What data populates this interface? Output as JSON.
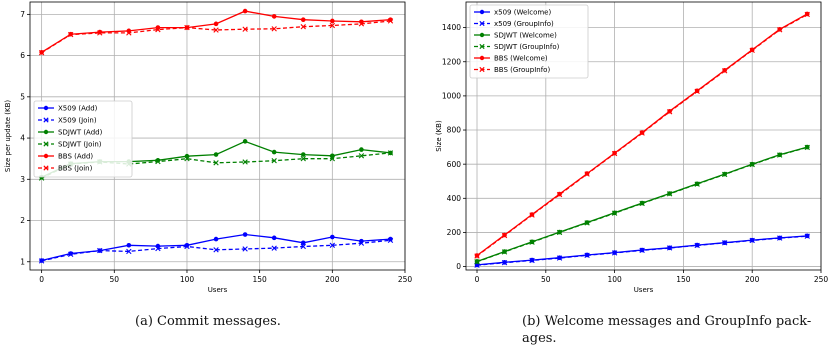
{
  "captions": {
    "left": "(a) Commit messages.",
    "right_line1": "(b) Welcome messages and GroupInfo pack-",
    "right_line2": "ages."
  },
  "chart_data": [
    {
      "type": "line",
      "title": "",
      "xlabel": "Users",
      "ylabel": "Size per update (KB)",
      "xlim": [
        -8,
        250
      ],
      "ylim": [
        0.8,
        7.3
      ],
      "xticks": [
        0,
        50,
        100,
        150,
        200,
        250
      ],
      "yticks": [
        1,
        2,
        3,
        4,
        5,
        6,
        7
      ],
      "grid": true,
      "legend": "center-left",
      "x": [
        0,
        20,
        40,
        60,
        80,
        100,
        120,
        140,
        160,
        180,
        200,
        220,
        240
      ],
      "series": [
        {
          "name": "X509 (Add)",
          "color": "#0000ff",
          "linestyle": "solid",
          "marker": "o",
          "values": [
            1.03,
            1.2,
            1.27,
            1.4,
            1.38,
            1.4,
            1.55,
            1.66,
            1.58,
            1.46,
            1.6,
            1.5,
            1.55
          ]
        },
        {
          "name": "X509 (Join)",
          "color": "#0000ff",
          "linestyle": "dashed",
          "marker": "x",
          "values": [
            1.02,
            1.18,
            1.27,
            1.25,
            1.32,
            1.37,
            1.29,
            1.31,
            1.33,
            1.37,
            1.4,
            1.45,
            1.52
          ]
        },
        {
          "name": "SDJWT (Add)",
          "color": "#008000",
          "linestyle": "solid",
          "marker": "o",
          "values": [
            3.05,
            3.38,
            3.43,
            3.43,
            3.46,
            3.56,
            3.6,
            3.92,
            3.66,
            3.6,
            3.57,
            3.72,
            3.64
          ]
        },
        {
          "name": "SDJWT (Join)",
          "color": "#008000",
          "linestyle": "dashed",
          "marker": "x",
          "values": [
            3.03,
            3.37,
            3.42,
            3.37,
            3.43,
            3.5,
            3.4,
            3.42,
            3.45,
            3.5,
            3.5,
            3.57,
            3.64
          ]
        },
        {
          "name": "BBS (Add)",
          "color": "#ff0000",
          "linestyle": "solid",
          "marker": "o",
          "values": [
            6.08,
            6.52,
            6.57,
            6.6,
            6.68,
            6.68,
            6.77,
            7.08,
            6.95,
            6.87,
            6.84,
            6.82,
            6.87
          ]
        },
        {
          "name": "BBS (Join)",
          "color": "#ff0000",
          "linestyle": "dashed",
          "marker": "x",
          "values": [
            6.07,
            6.51,
            6.55,
            6.55,
            6.63,
            6.68,
            6.62,
            6.64,
            6.65,
            6.7,
            6.73,
            6.77,
            6.84
          ]
        }
      ]
    },
    {
      "type": "line",
      "title": "",
      "xlabel": "Users",
      "ylabel": "Size (KB)",
      "xlim": [
        -8,
        250
      ],
      "ylim": [
        -20,
        1550
      ],
      "xticks": [
        0,
        50,
        100,
        150,
        200,
        250
      ],
      "yticks": [
        0,
        200,
        400,
        600,
        800,
        1000,
        1200,
        1400
      ],
      "grid": true,
      "legend": "top-left",
      "x": [
        0,
        20,
        40,
        60,
        80,
        100,
        120,
        140,
        160,
        180,
        200,
        220,
        240
      ],
      "series": [
        {
          "name": "x509 (Welcome)",
          "color": "#0000ff",
          "linestyle": "solid",
          "marker": "o",
          "values": [
            10,
            25,
            38,
            52,
            68,
            82,
            97,
            110,
            126,
            140,
            155,
            168,
            180
          ]
        },
        {
          "name": "x509 (GroupInfo)",
          "color": "#0000ff",
          "linestyle": "dashed",
          "marker": "x",
          "values": [
            8,
            23,
            36,
            50,
            66,
            80,
            95,
            109,
            124,
            139,
            153,
            167,
            178
          ]
        },
        {
          "name": "SDJWT (Welcome)",
          "color": "#008000",
          "linestyle": "solid",
          "marker": "o",
          "values": [
            30,
            88,
            145,
            202,
            258,
            315,
            372,
            428,
            485,
            542,
            600,
            655,
            700
          ]
        },
        {
          "name": "SDJWT (GroupInfo)",
          "color": "#008000",
          "linestyle": "dashed",
          "marker": "x",
          "values": [
            28,
            86,
            143,
            200,
            256,
            313,
            370,
            426,
            483,
            540,
            598,
            653,
            698
          ]
        },
        {
          "name": "BBS (Welcome)",
          "color": "#ff0000",
          "linestyle": "solid",
          "marker": "o",
          "values": [
            65,
            185,
            305,
            425,
            545,
            665,
            785,
            910,
            1030,
            1150,
            1270,
            1390,
            1480
          ]
        },
        {
          "name": "BBS (GroupInfo)",
          "color": "#ff0000",
          "linestyle": "dashed",
          "marker": "x",
          "values": [
            62,
            182,
            302,
            422,
            542,
            662,
            782,
            907,
            1027,
            1147,
            1267,
            1387,
            1477
          ]
        }
      ]
    }
  ]
}
